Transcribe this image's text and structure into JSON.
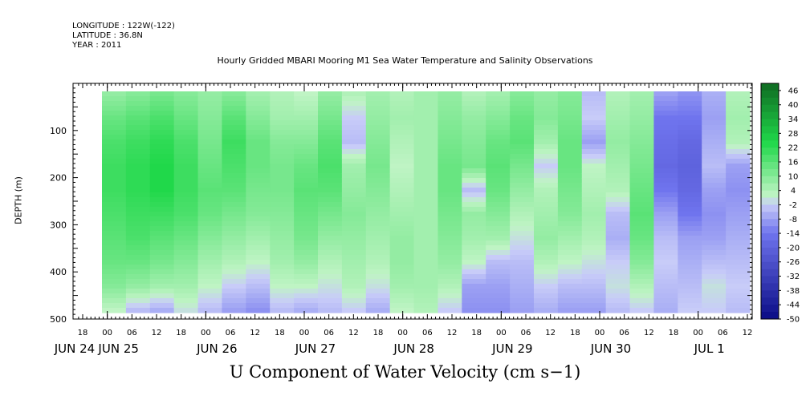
{
  "header": {
    "longitude": "LONGITUDE : 122W(-122)",
    "latitude": "LATITUDE : 36.8N",
    "year": "YEAR : 2011"
  },
  "chart_data": {
    "type": "heatmap",
    "title": "Hourly Gridded MBARI Mooring M1 Sea Water Temperature and Salinity Observations",
    "bottom_title": "U Component of Water Velocity (cm s−1)",
    "ylabel": "DEPTH (m)",
    "ylim": [
      500,
      0
    ],
    "y_ticks": [
      "100",
      "200",
      "300",
      "400",
      "500"
    ],
    "y_tick_values": [
      100,
      200,
      300,
      400,
      500
    ],
    "x_hours_ticks": [
      "18",
      "00",
      "06",
      "12",
      "18",
      "00",
      "06",
      "12",
      "18",
      "00",
      "06",
      "12",
      "18",
      "00",
      "06",
      "12",
      "18",
      "00",
      "06",
      "12",
      "18",
      "00",
      "06",
      "12",
      "18",
      "00",
      "06",
      "12"
    ],
    "x_date_labels": [
      "JUN 24",
      "JUN 25",
      "JUN 26",
      "JUN 27",
      "JUN 28",
      "JUN 29",
      "JUN 30",
      "JUL  1"
    ],
    "colorbar": {
      "labels": [
        "46",
        "40",
        "34",
        "28",
        "22",
        "16",
        "10",
        "4",
        "-2",
        "-8",
        "-14",
        "-20",
        "-26",
        "-32",
        "-38",
        "-44",
        "-50"
      ],
      "min": -50,
      "max": 49,
      "step": 3
    },
    "colors": {
      "dark_green": "#0f6a22",
      "green": "#20d84a",
      "light_green": "#bff4c4",
      "light_blue": "#c8ccf8",
      "blue": "#6f74ee",
      "dark_blue": "#0a0c86",
      "missing": "#ffffff"
    },
    "columns": [
      {
        "day": "JUN 25",
        "hour": "00",
        "profile": [
          8,
          14,
          18,
          20,
          20,
          18,
          16,
          14,
          10,
          2
        ]
      },
      {
        "day": "JUN 25",
        "hour": "06",
        "profile": [
          10,
          16,
          20,
          22,
          22,
          20,
          18,
          14,
          8,
          -4
        ]
      },
      {
        "day": "JUN 25",
        "hour": "12",
        "profile": [
          12,
          18,
          22,
          24,
          24,
          20,
          16,
          12,
          6,
          -6
        ]
      },
      {
        "day": "JUN 25",
        "hour": "18",
        "profile": [
          10,
          14,
          18,
          20,
          20,
          18,
          14,
          10,
          6,
          0
        ]
      },
      {
        "day": "JUN 26",
        "hour": "00",
        "profile": [
          8,
          10,
          12,
          14,
          16,
          14,
          10,
          6,
          2,
          -4
        ]
      },
      {
        "day": "JUN 26",
        "hour": "06",
        "profile": [
          10,
          16,
          20,
          18,
          16,
          12,
          8,
          4,
          -2,
          -8
        ]
      },
      {
        "day": "JUN 26",
        "hour": "12",
        "profile": [
          6,
          10,
          14,
          14,
          12,
          10,
          6,
          2,
          -4,
          -10
        ]
      },
      {
        "day": "JUN 26",
        "hour": "18",
        "profile": [
          4,
          6,
          10,
          12,
          12,
          10,
          8,
          6,
          2,
          -4
        ]
      },
      {
        "day": "JUN 27",
        "hour": "00",
        "profile": [
          2,
          6,
          10,
          14,
          16,
          14,
          12,
          8,
          2,
          -6
        ]
      },
      {
        "day": "JUN 27",
        "hour": "06",
        "profile": [
          8,
          12,
          16,
          18,
          16,
          12,
          8,
          4,
          0,
          -4
        ]
      },
      {
        "day": "JUN 27",
        "hour": "12",
        "profile": [
          4,
          -2,
          -4,
          6,
          8,
          10,
          8,
          6,
          4,
          -2
        ]
      },
      {
        "day": "JUN 27",
        "hour": "18",
        "profile": [
          6,
          8,
          10,
          12,
          10,
          8,
          6,
          4,
          0,
          -6
        ]
      },
      {
        "day": "JUN 28",
        "hour": "00",
        "profile": [
          4,
          6,
          4,
          2,
          4,
          6,
          8,
          8,
          6,
          2
        ]
      },
      {
        "day": "JUN 28",
        "hour": "06",
        "profile": [
          6,
          6,
          6,
          6,
          6,
          6,
          6,
          6,
          6,
          4
        ]
      },
      {
        "day": "JUN 28",
        "hour": "12",
        "profile": [
          8,
          10,
          12,
          14,
          14,
          12,
          10,
          8,
          4,
          -2
        ]
      },
      {
        "day": "JUN 28",
        "hour": "18",
        "profile": [
          4,
          8,
          10,
          12,
          -4,
          8,
          6,
          2,
          -8,
          -10
        ]
      },
      {
        "day": "JUN 29",
        "hour": "00",
        "profile": [
          6,
          10,
          14,
          16,
          14,
          10,
          6,
          -4,
          -8,
          -10
        ]
      },
      {
        "day": "JUN 29",
        "hour": "06",
        "profile": [
          10,
          14,
          16,
          12,
          8,
          4,
          0,
          -4,
          -6,
          -8
        ]
      },
      {
        "day": "JUN 29",
        "hour": "12",
        "profile": [
          8,
          10,
          6,
          -2,
          4,
          6,
          8,
          4,
          -2,
          -6
        ]
      },
      {
        "day": "JUN 29",
        "hour": "18",
        "profile": [
          10,
          12,
          14,
          14,
          12,
          10,
          6,
          2,
          -4,
          -8
        ]
      },
      {
        "day": "JUN 30",
        "hour": "00",
        "profile": [
          -4,
          -2,
          -8,
          2,
          4,
          6,
          4,
          0,
          -4,
          -8
        ]
      },
      {
        "day": "JUN 30",
        "hour": "06",
        "profile": [
          4,
          6,
          8,
          6,
          4,
          -4,
          -6,
          -2,
          0,
          -4
        ]
      },
      {
        "day": "JUN 30",
        "hour": "12",
        "profile": [
          6,
          8,
          10,
          12,
          14,
          16,
          14,
          10,
          4,
          -2
        ]
      },
      {
        "day": "JUN 30",
        "hour": "18",
        "profile": [
          -8,
          -14,
          -16,
          -18,
          -14,
          -8,
          -4,
          -2,
          -4,
          -6
        ]
      },
      {
        "day": "JUL  1",
        "hour": "00",
        "profile": [
          -10,
          -14,
          -18,
          -20,
          -18,
          -14,
          -8,
          -6,
          -4,
          -2
        ]
      },
      {
        "day": "JUL  1",
        "hour": "06",
        "profile": [
          -6,
          -8,
          -6,
          -4,
          -8,
          -10,
          -8,
          -4,
          0,
          -2
        ]
      },
      {
        "day": "JUL  1",
        "hour": "12",
        "profile": [
          4,
          6,
          4,
          -8,
          -10,
          -8,
          -6,
          -4,
          -2,
          -4
        ]
      }
    ]
  }
}
